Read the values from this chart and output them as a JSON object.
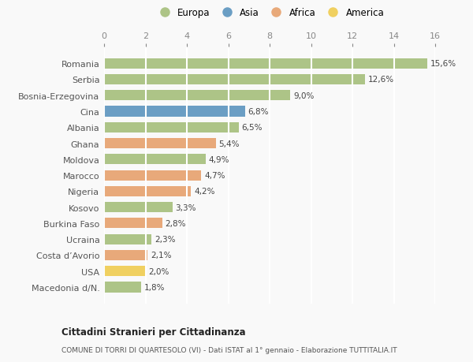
{
  "categories": [
    "Macedonia d/N.",
    "USA",
    "Costa d’Avorio",
    "Ucraina",
    "Burkina Faso",
    "Kosovo",
    "Nigeria",
    "Marocco",
    "Moldova",
    "Ghana",
    "Albania",
    "Cina",
    "Bosnia-Erzegovina",
    "Serbia",
    "Romania"
  ],
  "values": [
    1.8,
    2.0,
    2.1,
    2.3,
    2.8,
    3.3,
    4.2,
    4.7,
    4.9,
    5.4,
    6.5,
    6.8,
    9.0,
    12.6,
    15.6
  ],
  "labels": [
    "1,8%",
    "2,0%",
    "2,1%",
    "2,3%",
    "2,8%",
    "3,3%",
    "4,2%",
    "4,7%",
    "4,9%",
    "5,4%",
    "6,5%",
    "6,8%",
    "9,0%",
    "12,6%",
    "15,6%"
  ],
  "continents": [
    "Europa",
    "America",
    "Africa",
    "Europa",
    "Africa",
    "Europa",
    "Africa",
    "Africa",
    "Europa",
    "Africa",
    "Europa",
    "Asia",
    "Europa",
    "Europa",
    "Europa"
  ],
  "colors": {
    "Europa": "#adc487",
    "Asia": "#6b9ec4",
    "Africa": "#e8a97a",
    "America": "#f0d060"
  },
  "legend_order": [
    "Europa",
    "Asia",
    "Africa",
    "America"
  ],
  "title": "Cittadini Stranieri per Cittadinanza",
  "subtitle": "COMUNE DI TORRI DI QUARTESOLO (VI) - Dati ISTAT al 1° gennaio - Elaborazione TUTTITALIA.IT",
  "xlim": [
    0,
    16
  ],
  "xticks": [
    0,
    2,
    4,
    6,
    8,
    10,
    12,
    14,
    16
  ],
  "bg_color": "#f9f9f9",
  "grid_color": "#ffffff",
  "bar_height": 0.65
}
